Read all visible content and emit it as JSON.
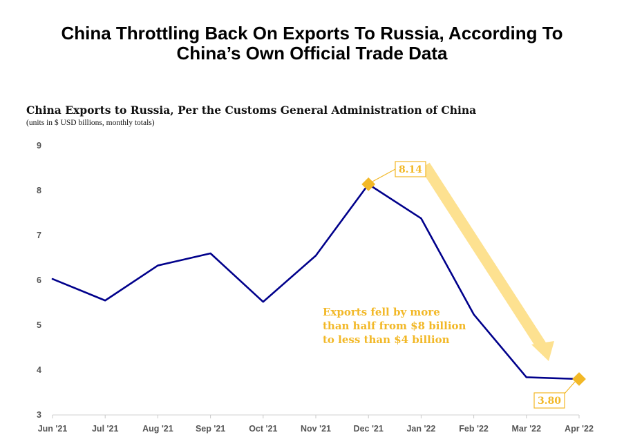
{
  "headline": {
    "line1": "China Throttling Back On Exports To Russia, According To",
    "line2": "China’s Own Official Trade Data"
  },
  "chart_data": {
    "type": "line",
    "title": "China Exports to Russia, Per the Customs General Administration of China",
    "subtitle": "(units in $ USD billions, monthly totals)",
    "categories": [
      "Jun '21",
      "Jul '21",
      "Aug '21",
      "Sep '21",
      "Oct '21",
      "Nov '21",
      "Dec '21",
      "Jan '22",
      "Feb '22",
      "Mar '22",
      "Apr '22"
    ],
    "series": [
      {
        "name": "China Exports to Russia",
        "values": [
          6.03,
          5.55,
          6.33,
          6.6,
          5.52,
          6.55,
          8.14,
          7.38,
          5.24,
          3.84,
          3.8
        ]
      }
    ],
    "ylim": [
      3,
      9
    ],
    "yticks": [
      3,
      4,
      5,
      6,
      7,
      8,
      9
    ],
    "grid": false,
    "line_color": "#00008b",
    "highlight_color": "#f2b827",
    "arrow_color": "#fde08b",
    "annotations": {
      "peak_label": "8.14",
      "end_label": "3.80",
      "callout_lines": [
        "Exports fell by more",
        "than half from $8 billion",
        "to less than $4 billion"
      ]
    }
  }
}
